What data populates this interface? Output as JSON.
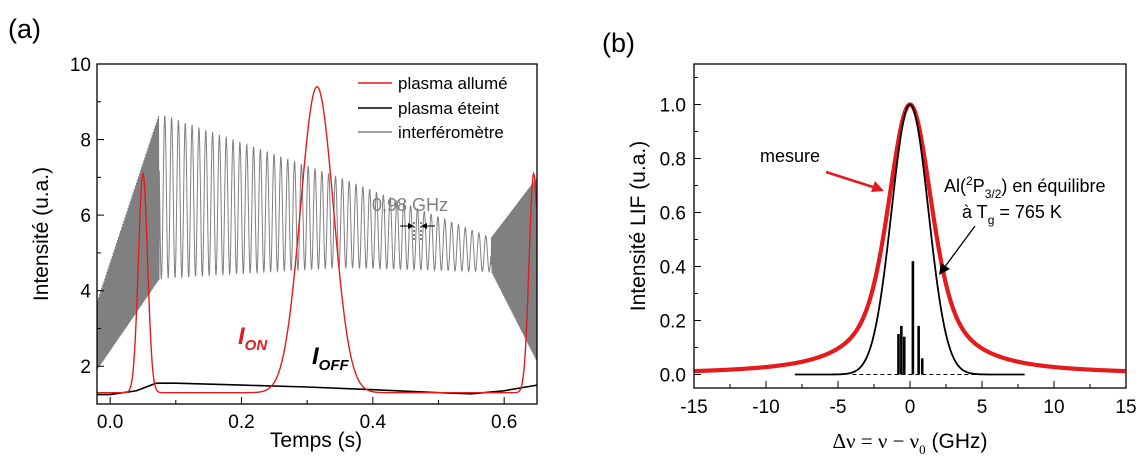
{
  "panels": {
    "a": {
      "label": "(a)",
      "x_label": "Temps (s)",
      "y_label": "Intensité (u.a.)",
      "annotation_freq": "0,98 GHz",
      "ion_label": {
        "main": "I",
        "sub": "ON"
      },
      "ioff_label": {
        "main": "I",
        "sub": "OFF"
      }
    },
    "b": {
      "label": "(b)",
      "x_label_pre": "Δν = ν − ν",
      "x_label_sub": "0",
      "x_label_post": "  (GHz)",
      "y_label": "Intensité LIF (u.a.)",
      "mesure_label": "mesure",
      "eq_line1_pre": "Al(",
      "eq_line1_sup": "2",
      "eq_line1_mid": "P",
      "eq_line1_sub": "3/2",
      "eq_line1_post": ") en équilibre",
      "eq_line2_pre": "à T",
      "eq_line2_sub": "g",
      "eq_line2_post": " = 765 K"
    }
  },
  "chart_data": [
    {
      "type": "line",
      "xlabel": "Temps (s)",
      "ylabel": "Intensité (u.a.)",
      "xlim": [
        -0.02,
        0.65
      ],
      "ylim": [
        1.0,
        10.0
      ],
      "xticks": [
        "0.0",
        "0.2",
        "0.4",
        "0.6"
      ],
      "xtick_values": [
        0.0,
        0.2,
        0.4,
        0.6
      ],
      "yticks": [
        "2",
        "4",
        "6",
        "8",
        "10"
      ],
      "ytick_values": [
        2,
        4,
        6,
        8,
        10
      ],
      "legend_position": "top-right",
      "series": [
        {
          "name": "plasma allumé",
          "color": "#e41a1c",
          "peaks": [
            {
              "t": 0.05,
              "height": 7.1
            },
            {
              "t": 0.315,
              "height": 9.4
            },
            {
              "t": 0.645,
              "height": 7.1
            }
          ],
          "baseline": 1.3
        },
        {
          "name": "plasma éteint",
          "color": "#000000",
          "points": [
            [
              -0.02,
              1.25
            ],
            [
              0.0,
              1.25
            ],
            [
              0.04,
              1.35
            ],
            [
              0.07,
              1.55
            ],
            [
              0.1,
              1.55
            ],
            [
              0.2,
              1.5
            ],
            [
              0.3,
              1.45
            ],
            [
              0.4,
              1.38
            ],
            [
              0.5,
              1.3
            ],
            [
              0.55,
              1.27
            ],
            [
              0.6,
              1.35
            ],
            [
              0.65,
              1.5
            ]
          ]
        },
        {
          "name": "interféromètre",
          "color": "#808080",
          "envelope_top": [
            [
              -0.02,
              3.7
            ],
            [
              0.075,
              8.7
            ],
            [
              0.35,
              7.0
            ],
            [
              0.58,
              5.4
            ],
            [
              0.65,
              7.1
            ]
          ],
          "envelope_bottom": [
            [
              -0.02,
              1.9
            ],
            [
              0.075,
              4.3
            ],
            [
              0.35,
              4.6
            ],
            [
              0.58,
              4.5
            ],
            [
              0.65,
              2.0
            ]
          ]
        }
      ]
    },
    {
      "type": "line",
      "xlabel": "Δν = ν − ν0 (GHz)",
      "ylabel": "Intensité LIF (u.a.)",
      "xlim": [
        -15,
        15
      ],
      "ylim": [
        -0.05,
        1.15
      ],
      "xticks": [
        "-15",
        "-10",
        "-5",
        "0",
        "5",
        "10",
        "15"
      ],
      "xtick_values": [
        -15,
        -10,
        -5,
        0,
        5,
        10,
        15
      ],
      "yticks": [
        "0.0",
        "0.2",
        "0.4",
        "0.6",
        "0.8",
        "1.0"
      ],
      "ytick_values": [
        0.0,
        0.2,
        0.4,
        0.6,
        0.8,
        1.0
      ],
      "series": [
        {
          "name": "mesure",
          "color": "#e41a1c",
          "shape": "lorentzian-like",
          "center": 0.0,
          "peak": 1.0,
          "hwhm": 2.3
        },
        {
          "name": "Al(2P3/2) en équilibre à Tg = 765 K",
          "color": "#000000",
          "shape": "gaussian",
          "center": 0.0,
          "peak": 1.0,
          "hwhm": 1.05
        }
      ],
      "stick_lines": [
        {
          "x": -0.8,
          "y": 0.15
        },
        {
          "x": -0.6,
          "y": 0.18
        },
        {
          "x": -0.4,
          "y": 0.14
        },
        {
          "x": 0.2,
          "y": 0.42
        },
        {
          "x": 0.6,
          "y": 0.18
        },
        {
          "x": 0.85,
          "y": 0.06
        }
      ]
    }
  ]
}
